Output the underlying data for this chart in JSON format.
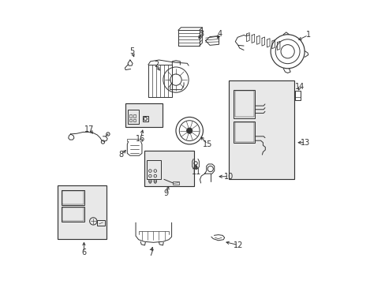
{
  "bg_color": "#ffffff",
  "line_color": "#333333",
  "callouts": {
    "1": [
      0.908,
      0.878,
      0.865,
      0.857
    ],
    "2": [
      0.37,
      0.772,
      0.388,
      0.745
    ],
    "3": [
      0.53,
      0.882,
      0.515,
      0.858
    ],
    "4": [
      0.595,
      0.882,
      0.582,
      0.858
    ],
    "5": [
      0.285,
      0.82,
      0.295,
      0.792
    ],
    "6": [
      0.115,
      0.11,
      0.115,
      0.155
    ],
    "7": [
      0.352,
      0.108,
      0.36,
      0.138
    ],
    "8": [
      0.247,
      0.455,
      0.27,
      0.478
    ],
    "9": [
      0.405,
      0.318,
      0.418,
      0.352
    ],
    "10": [
      0.627,
      0.378,
      0.583,
      0.378
    ],
    "11": [
      0.512,
      0.395,
      0.51,
      0.428
    ],
    "12": [
      0.66,
      0.136,
      0.608,
      0.148
    ],
    "13": [
      0.898,
      0.498,
      0.862,
      0.498
    ],
    "14": [
      0.879,
      0.695,
      0.868,
      0.675
    ],
    "15": [
      0.552,
      0.492,
      0.522,
      0.525
    ],
    "16": [
      0.315,
      0.512,
      0.325,
      0.552
    ],
    "17": [
      0.135,
      0.545,
      0.152,
      0.522
    ]
  },
  "boxes": {
    "6": [
      0.022,
      0.158,
      0.195,
      0.348
    ],
    "9": [
      0.328,
      0.345,
      0.505,
      0.468
    ],
    "13": [
      0.628,
      0.368,
      0.858,
      0.718
    ],
    "16": [
      0.262,
      0.552,
      0.392,
      0.638
    ]
  }
}
